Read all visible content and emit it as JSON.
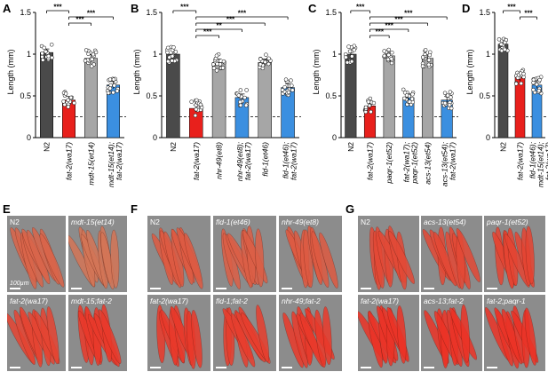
{
  "colors": {
    "N2": "#4a4a4a",
    "fat2": "#e8201c",
    "gray": "#a6a6a6",
    "blue": "#3b8fe0"
  },
  "panel_labels": [
    "A",
    "B",
    "C",
    "D",
    "E",
    "F",
    "G"
  ],
  "ylabel": "Length (mm)",
  "chart_data": [
    {
      "panel": "A",
      "type": "bar",
      "ylabel": "Length (mm)",
      "ylim": [
        0,
        1.5
      ],
      "yticks": [
        "0",
        "0.5",
        "1",
        "1.5"
      ],
      "dashed_line": 0.25,
      "categories": [
        "N2",
        "fat-2(wa17)",
        "mdt-15(et14)",
        "mdt-15(et14); fat-2(wa17)"
      ],
      "values": [
        1.02,
        0.45,
        0.95,
        0.63
      ],
      "bar_colors": [
        "#4a4a4a",
        "#e8201c",
        "#a6a6a6",
        "#3b8fe0"
      ],
      "significance": [
        {
          "from": 0,
          "to": 1,
          "label": "***"
        },
        {
          "from": 1,
          "to": 2,
          "label": "***"
        },
        {
          "from": 1,
          "to": 3,
          "label": "***"
        }
      ]
    },
    {
      "panel": "B",
      "type": "bar",
      "ylabel": "Length (mm)",
      "ylim": [
        0,
        1.5
      ],
      "yticks": [
        "0",
        "0.5",
        "1",
        "1.5"
      ],
      "dashed_line": 0.25,
      "categories": [
        "N2",
        "fat-2(wa17)",
        "nhr-49(et8)",
        "nhr-49(et8); fat-2(wa17)",
        "fld-1(et46)",
        "fld-1(et46); fat-2(wa17)"
      ],
      "values": [
        1.0,
        0.35,
        0.9,
        0.48,
        0.9,
        0.6
      ],
      "bar_colors": [
        "#4a4a4a",
        "#e8201c",
        "#a6a6a6",
        "#3b8fe0",
        "#a6a6a6",
        "#3b8fe0"
      ],
      "significance": [
        {
          "from": 0,
          "to": 1,
          "label": "***"
        },
        {
          "from": 1,
          "to": 2,
          "label": "***"
        },
        {
          "from": 1,
          "to": 3,
          "label": "**"
        },
        {
          "from": 1,
          "to": 4,
          "label": "***"
        },
        {
          "from": 1,
          "to": 5,
          "label": "***"
        }
      ]
    },
    {
      "panel": "C",
      "type": "bar",
      "ylabel": "Length (mm)",
      "ylim": [
        0,
        1.5
      ],
      "yticks": [
        "0",
        "0.5",
        "1",
        "1.5"
      ],
      "dashed_line": 0.25,
      "categories": [
        "N2",
        "fat-2(wa17)",
        "paqr-1(et52)",
        "fat-2(wa17); paqr-1(et52)",
        "acs-13(et54)",
        "acs-13(et54); fat-2(wa17)"
      ],
      "values": [
        1.0,
        0.38,
        0.98,
        0.48,
        0.95,
        0.45
      ],
      "bar_colors": [
        "#4a4a4a",
        "#e8201c",
        "#a6a6a6",
        "#3b8fe0",
        "#a6a6a6",
        "#3b8fe0"
      ],
      "significance": [
        {
          "from": 0,
          "to": 1,
          "label": "***"
        },
        {
          "from": 1,
          "to": 2,
          "label": "***"
        },
        {
          "from": 1,
          "to": 3,
          "label": "***"
        },
        {
          "from": 1,
          "to": 4,
          "label": "***"
        },
        {
          "from": 1,
          "to": 5,
          "label": "***"
        }
      ]
    },
    {
      "panel": "D",
      "type": "bar",
      "ylabel": "Length (mm)",
      "ylim": [
        0,
        1.5
      ],
      "yticks": [
        "0",
        "0.5",
        "1",
        "1.5"
      ],
      "dashed_line": 0.25,
      "categories": [
        "N2",
        "fat-2(wa17)",
        "fld-1(et46); mdt-15(et14); fat-2(wa17)"
      ],
      "values": [
        1.12,
        0.72,
        0.63
      ],
      "bar_colors": [
        "#4a4a4a",
        "#e8201c",
        "#3b8fe0"
      ],
      "significance": [
        {
          "from": 0,
          "to": 1,
          "label": "***"
        },
        {
          "from": 1,
          "to": 2,
          "label": "***"
        }
      ]
    }
  ],
  "micrographs": {
    "E": {
      "labels": [
        "N2",
        "mdt-15(et14)",
        "fat-2(wa17)",
        "mdt-15;fat-2"
      ],
      "scale_bar": "100µm",
      "redness": [
        0.45,
        0.3,
        0.75,
        0.85
      ]
    },
    "F": {
      "labels": [
        "N2",
        "fld-1(et46)",
        "nhr-49(et8)",
        "fat-2(wa17)",
        "fld-1;fat-2",
        "nhr-49;fat-2"
      ],
      "redness": [
        0.55,
        0.5,
        0.55,
        0.85,
        0.8,
        0.85
      ]
    },
    "G": {
      "labels": [
        "N2",
        "acs-13(et54)",
        "paqr-1(et52)",
        "fat-2(wa17)",
        "acs-13;fat-2",
        "fat-2;paqr-1"
      ],
      "redness": [
        0.7,
        0.7,
        0.75,
        0.9,
        0.9,
        0.9
      ]
    }
  }
}
